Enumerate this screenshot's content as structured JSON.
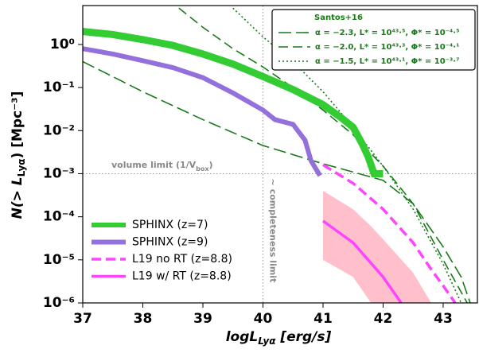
{
  "chart_data": {
    "type": "line",
    "log_y": true,
    "xlabel": {
      "main": "logL",
      "sub": "Lyα",
      "rest": " [erg/s]"
    },
    "ylabel": {
      "main": "N(> L",
      "sub": "Lyα",
      "rest": ") [Mpc⁻³]"
    },
    "xlim": [
      37,
      43.57
    ],
    "ylim": [
      1e-06,
      8
    ],
    "xticks": [
      37,
      38,
      39,
      40,
      41,
      42,
      43
    ],
    "yticks": [
      {
        "value": 1e-06,
        "label": "10⁻⁶"
      },
      {
        "value": 1e-05,
        "label": "10⁻⁵"
      },
      {
        "value": 0.0001,
        "label": "10⁻⁴"
      },
      {
        "value": 0.001,
        "label": "10⁻³"
      },
      {
        "value": 0.01,
        "label": "10⁻²"
      },
      {
        "value": 0.1,
        "label": "10⁻¹"
      },
      {
        "value": 1,
        "label": "10⁰"
      }
    ],
    "series": [
      {
        "name": "SPHINX (z=7)",
        "color": "#33cc33",
        "width": 9,
        "style": "solid",
        "x": [
          37,
          37.5,
          38,
          38.5,
          39,
          39.5,
          40,
          40.5,
          41,
          41.3,
          41.5,
          41.65,
          41.75,
          41.85,
          42
        ],
        "values": [
          2.0,
          1.7,
          1.3,
          0.95,
          0.6,
          0.35,
          0.18,
          0.09,
          0.04,
          0.02,
          0.012,
          0.005,
          0.0025,
          0.001,
          0.001
        ]
      },
      {
        "name": "SPHINX (z=9)",
        "color": "#9370db",
        "width": 6,
        "style": "solid",
        "x": [
          37,
          37.5,
          38,
          38.5,
          39,
          39.5,
          40,
          40.2,
          40.5,
          40.7,
          40.8,
          40.95
        ],
        "values": [
          0.8,
          0.6,
          0.42,
          0.29,
          0.17,
          0.075,
          0.03,
          0.018,
          0.014,
          0.006,
          0.002,
          0.0009
        ]
      },
      {
        "name": "L19 no RT (z=8.8)",
        "color": "#ff44ff",
        "width": 3.5,
        "style": "dashed",
        "x": [
          41,
          41.5,
          42,
          42.5,
          42.8,
          43,
          43.2
        ],
        "values": [
          0.0016,
          0.0006,
          0.00015,
          2.5e-05,
          6e-06,
          2.5e-06,
          1e-06
        ]
      },
      {
        "name": "L19 w/ RT (z=8.8)",
        "color": "#ff44ff",
        "width": 3.5,
        "style": "solid",
        "x": [
          41,
          41.5,
          42,
          42.3
        ],
        "values": [
          8e-05,
          2.5e-05,
          4e-06,
          1e-06
        ]
      }
    ],
    "band": {
      "color": "#ffc0cb",
      "x": [
        41,
        41.5,
        41.8,
        42,
        42.5,
        42.8
      ],
      "upper": [
        0.0004,
        0.00015,
        6e-05,
        3e-05,
        5e-06,
        1e-06
      ],
      "lower": [
        1e-05,
        4e-06,
        1e-06,
        null,
        null,
        null
      ]
    },
    "santos": {
      "title": "Santos+16",
      "color": "#1a7a1a",
      "series": [
        {
          "name": "α = −2.3, L* = 10⁴³·⁵, Φ* = 10⁻⁴·⁵",
          "style": "longdash",
          "x": [
            37,
            38,
            39,
            40,
            41,
            42,
            42.5,
            43,
            43.3,
            43.45
          ],
          "values": [
            0.4,
            0.08,
            0.018,
            0.0045,
            0.0017,
            0.0007,
            0.0002,
            2e-05,
            4e-06,
            1e-06
          ]
        },
        {
          "name": "α = −2.0, L* = 10⁴³·³, Φ* = 10⁻⁴·¹",
          "style": "dashed",
          "x": [
            38.6,
            39,
            39.5,
            40,
            40.5,
            41,
            41.5,
            42,
            42.5,
            43,
            43.4
          ],
          "values": [
            7,
            2.5,
            0.8,
            0.3,
            0.1,
            0.03,
            0.008,
            0.0015,
            0.0002,
            1e-05,
            1e-06
          ]
        },
        {
          "name": "α = −1.5, L* = 10⁴³·¹, Φ* = 10⁻³·⁷",
          "style": "dotted",
          "x": [
            39.5,
            40,
            40.5,
            41,
            41.5,
            42,
            42.5,
            43,
            43.3
          ],
          "values": [
            7,
            1.5,
            0.4,
            0.08,
            0.012,
            0.0015,
            0.00015,
            8e-06,
            1e-06
          ]
        }
      ]
    },
    "volume_limit": {
      "value": 0.001,
      "label": {
        "main": "volume limit (1/V",
        "sub": "box",
        "rest": ")"
      }
    },
    "completeness_limit": {
      "value": 40,
      "label": "~ completeness limit"
    }
  }
}
